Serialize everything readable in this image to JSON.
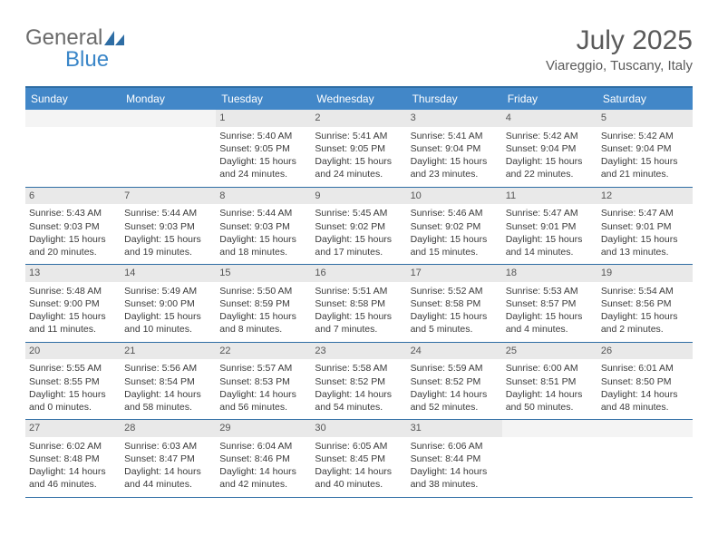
{
  "brand": {
    "part1": "General",
    "part2": "Blue"
  },
  "title": "July 2025",
  "location": "Viareggio, Tuscany, Italy",
  "calendar": {
    "day_headers": [
      "Sunday",
      "Monday",
      "Tuesday",
      "Wednesday",
      "Thursday",
      "Friday",
      "Saturday"
    ],
    "header_bg": "#4287c8",
    "header_text": "#ffffff",
    "border_color": "#2e6da4",
    "daynum_bg": "#e9e9e9",
    "cell_font_size": 10.5,
    "weeks": [
      [
        {
          "empty": true
        },
        {
          "empty": true
        },
        {
          "day": "1",
          "sunrise": "5:40 AM",
          "sunset": "9:05 PM",
          "daylight": "15 hours and 24 minutes."
        },
        {
          "day": "2",
          "sunrise": "5:41 AM",
          "sunset": "9:05 PM",
          "daylight": "15 hours and 24 minutes."
        },
        {
          "day": "3",
          "sunrise": "5:41 AM",
          "sunset": "9:04 PM",
          "daylight": "15 hours and 23 minutes."
        },
        {
          "day": "4",
          "sunrise": "5:42 AM",
          "sunset": "9:04 PM",
          "daylight": "15 hours and 22 minutes."
        },
        {
          "day": "5",
          "sunrise": "5:42 AM",
          "sunset": "9:04 PM",
          "daylight": "15 hours and 21 minutes."
        }
      ],
      [
        {
          "day": "6",
          "sunrise": "5:43 AM",
          "sunset": "9:03 PM",
          "daylight": "15 hours and 20 minutes."
        },
        {
          "day": "7",
          "sunrise": "5:44 AM",
          "sunset": "9:03 PM",
          "daylight": "15 hours and 19 minutes."
        },
        {
          "day": "8",
          "sunrise": "5:44 AM",
          "sunset": "9:03 PM",
          "daylight": "15 hours and 18 minutes."
        },
        {
          "day": "9",
          "sunrise": "5:45 AM",
          "sunset": "9:02 PM",
          "daylight": "15 hours and 17 minutes."
        },
        {
          "day": "10",
          "sunrise": "5:46 AM",
          "sunset": "9:02 PM",
          "daylight": "15 hours and 15 minutes."
        },
        {
          "day": "11",
          "sunrise": "5:47 AM",
          "sunset": "9:01 PM",
          "daylight": "15 hours and 14 minutes."
        },
        {
          "day": "12",
          "sunrise": "5:47 AM",
          "sunset": "9:01 PM",
          "daylight": "15 hours and 13 minutes."
        }
      ],
      [
        {
          "day": "13",
          "sunrise": "5:48 AM",
          "sunset": "9:00 PM",
          "daylight": "15 hours and 11 minutes."
        },
        {
          "day": "14",
          "sunrise": "5:49 AM",
          "sunset": "9:00 PM",
          "daylight": "15 hours and 10 minutes."
        },
        {
          "day": "15",
          "sunrise": "5:50 AM",
          "sunset": "8:59 PM",
          "daylight": "15 hours and 8 minutes."
        },
        {
          "day": "16",
          "sunrise": "5:51 AM",
          "sunset": "8:58 PM",
          "daylight": "15 hours and 7 minutes."
        },
        {
          "day": "17",
          "sunrise": "5:52 AM",
          "sunset": "8:58 PM",
          "daylight": "15 hours and 5 minutes."
        },
        {
          "day": "18",
          "sunrise": "5:53 AM",
          "sunset": "8:57 PM",
          "daylight": "15 hours and 4 minutes."
        },
        {
          "day": "19",
          "sunrise": "5:54 AM",
          "sunset": "8:56 PM",
          "daylight": "15 hours and 2 minutes."
        }
      ],
      [
        {
          "day": "20",
          "sunrise": "5:55 AM",
          "sunset": "8:55 PM",
          "daylight": "15 hours and 0 minutes."
        },
        {
          "day": "21",
          "sunrise": "5:56 AM",
          "sunset": "8:54 PM",
          "daylight": "14 hours and 58 minutes."
        },
        {
          "day": "22",
          "sunrise": "5:57 AM",
          "sunset": "8:53 PM",
          "daylight": "14 hours and 56 minutes."
        },
        {
          "day": "23",
          "sunrise": "5:58 AM",
          "sunset": "8:52 PM",
          "daylight": "14 hours and 54 minutes."
        },
        {
          "day": "24",
          "sunrise": "5:59 AM",
          "sunset": "8:52 PM",
          "daylight": "14 hours and 52 minutes."
        },
        {
          "day": "25",
          "sunrise": "6:00 AM",
          "sunset": "8:51 PM",
          "daylight": "14 hours and 50 minutes."
        },
        {
          "day": "26",
          "sunrise": "6:01 AM",
          "sunset": "8:50 PM",
          "daylight": "14 hours and 48 minutes."
        }
      ],
      [
        {
          "day": "27",
          "sunrise": "6:02 AM",
          "sunset": "8:48 PM",
          "daylight": "14 hours and 46 minutes."
        },
        {
          "day": "28",
          "sunrise": "6:03 AM",
          "sunset": "8:47 PM",
          "daylight": "14 hours and 44 minutes."
        },
        {
          "day": "29",
          "sunrise": "6:04 AM",
          "sunset": "8:46 PM",
          "daylight": "14 hours and 42 minutes."
        },
        {
          "day": "30",
          "sunrise": "6:05 AM",
          "sunset": "8:45 PM",
          "daylight": "14 hours and 40 minutes."
        },
        {
          "day": "31",
          "sunrise": "6:06 AM",
          "sunset": "8:44 PM",
          "daylight": "14 hours and 38 minutes."
        },
        {
          "empty": true
        },
        {
          "empty": true
        }
      ]
    ],
    "labels": {
      "sunrise": "Sunrise:",
      "sunset": "Sunset:",
      "daylight": "Daylight:"
    }
  }
}
